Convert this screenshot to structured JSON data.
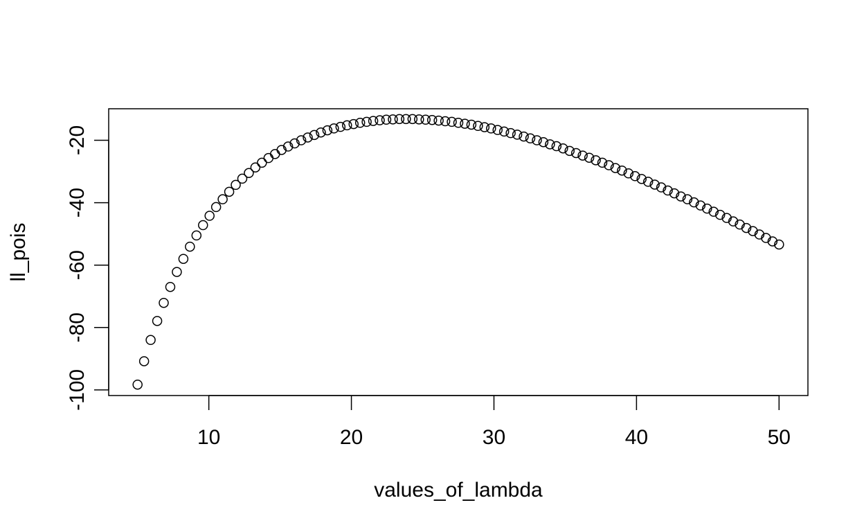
{
  "chart_data": {
    "type": "scatter",
    "title": "",
    "xlabel": "values_of_lambda",
    "ylabel": "ll_pois",
    "xlim": [
      2.975,
      52.025
    ],
    "ylim": [
      -101.8,
      -9.9
    ],
    "x_ticks": [
      10,
      20,
      30,
      40,
      50
    ],
    "y_ticks": [
      -100,
      -80,
      -60,
      -40,
      -20
    ],
    "x_tick_labels": [
      "10",
      "20",
      "30",
      "40",
      "50"
    ],
    "y_tick_labels": [
      "-100",
      "-80",
      "-60",
      "-40",
      "-20"
    ],
    "grid": false,
    "legend": "none",
    "marker": "open-circle",
    "point_color": "#000000",
    "series": [
      {
        "x_start": 5,
        "x_end": 50,
        "n_points": 99,
        "description_of_values": "",
        "x": [
          5,
          5.459,
          5.918,
          6.378,
          6.837,
          7.296,
          7.755,
          8.214,
          8.673,
          9.133,
          9.592,
          10.051,
          10.51,
          10.969,
          11.429,
          11.888,
          12.347,
          12.806,
          13.265,
          13.724,
          14.184,
          14.643,
          15.102,
          15.561,
          16.02,
          16.48,
          16.939,
          17.398,
          17.857,
          18.316,
          18.776,
          19.235,
          19.694,
          20.153,
          20.612,
          21.071,
          21.531,
          21.99,
          22.449,
          22.908,
          23.367,
          23.827,
          24.286,
          24.745,
          25.204,
          25.663,
          26.122,
          26.582,
          27.041,
          27.5,
          27.959,
          28.418,
          28.878,
          29.337,
          29.796,
          30.255,
          30.714,
          31.173,
          31.633,
          32.092,
          32.551,
          33.01,
          33.469,
          33.929,
          34.388,
          34.847,
          35.306,
          35.765,
          36.224,
          36.684,
          37.143,
          37.602,
          38.061,
          38.52,
          38.98,
          39.439,
          39.898,
          40.357,
          40.816,
          41.276,
          41.735,
          42.194,
          42.653,
          43.112,
          43.571,
          44.031,
          44.49,
          44.949,
          45.408,
          45.867,
          46.327,
          46.786,
          47.245,
          47.704,
          48.163,
          48.622,
          49.082,
          49.541,
          50
        ],
        "y": [
          -98.3,
          -90.8,
          -84.0,
          -77.9,
          -72.1,
          -67.0,
          -62.2,
          -58.0,
          -54.1,
          -50.5,
          -47.2,
          -44.2,
          -41.4,
          -38.9,
          -36.5,
          -34.3,
          -32.3,
          -30.5,
          -28.7,
          -27.2,
          -25.7,
          -24.4,
          -23.1,
          -22.0,
          -21.0,
          -20.0,
          -19.1,
          -18.3,
          -17.5,
          -16.8,
          -16.2,
          -15.7,
          -15.2,
          -14.8,
          -14.4,
          -14.1,
          -13.8,
          -13.6,
          -13.4,
          -13.3,
          -13.2,
          -13.2,
          -13.2,
          -13.3,
          -13.4,
          -13.5,
          -13.7,
          -13.9,
          -14.1,
          -14.4,
          -14.7,
          -15.0,
          -15.4,
          -15.8,
          -16.2,
          -16.7,
          -17.2,
          -17.7,
          -18.2,
          -18.8,
          -19.4,
          -20.0,
          -20.6,
          -21.3,
          -21.9,
          -22.6,
          -23.4,
          -24.1,
          -24.9,
          -25.6,
          -26.4,
          -27.2,
          -28.0,
          -28.9,
          -29.7,
          -30.6,
          -31.5,
          -32.4,
          -33.3,
          -34.2,
          -35.1,
          -36.1,
          -37.0,
          -38.0,
          -38.9,
          -39.9,
          -40.9,
          -41.9,
          -42.9,
          -43.9,
          -44.9,
          -46.0,
          -47.0,
          -48.1,
          -49.1,
          -50.2,
          -51.3,
          -52.4,
          -53.4
        ]
      }
    ]
  }
}
